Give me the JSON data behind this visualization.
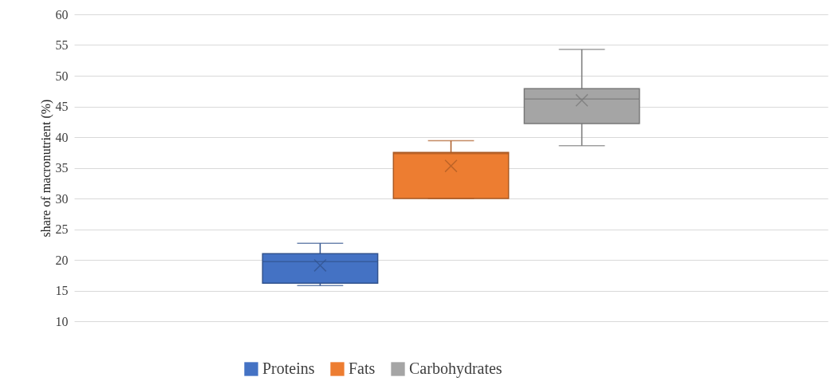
{
  "chart_data": {
    "type": "box",
    "ylabel": "share of macronutrient (%)",
    "categories": [
      null
    ],
    "series": [
      {
        "name": "Proteins",
        "color": "#4472c4",
        "boxes": [
          {
            "low": 15.8,
            "q1": 16.2,
            "median": 19.7,
            "q3": 21.0,
            "high": 22.7,
            "mean": 19.1
          }
        ]
      },
      {
        "name": "Fats",
        "color": "#ed7d31",
        "boxes": [
          {
            "low": 30.0,
            "q1": 30.0,
            "median": 37.3,
            "q3": 37.5,
            "high": 39.4,
            "mean": 35.3
          }
        ]
      },
      {
        "name": "Carbohydrates",
        "color": "#a5a5a5",
        "boxes": [
          {
            "low": 38.6,
            "q1": 42.2,
            "median": 46.2,
            "q3": 47.9,
            "high": 54.3,
            "mean": 46.0
          }
        ]
      }
    ],
    "ylim": [
      10,
      60
    ],
    "yticks": [
      10,
      15,
      20,
      25,
      30,
      35,
      40,
      45,
      50,
      55,
      60
    ],
    "grid": "y",
    "legend": "bottom",
    "tick_labels": "y"
  }
}
